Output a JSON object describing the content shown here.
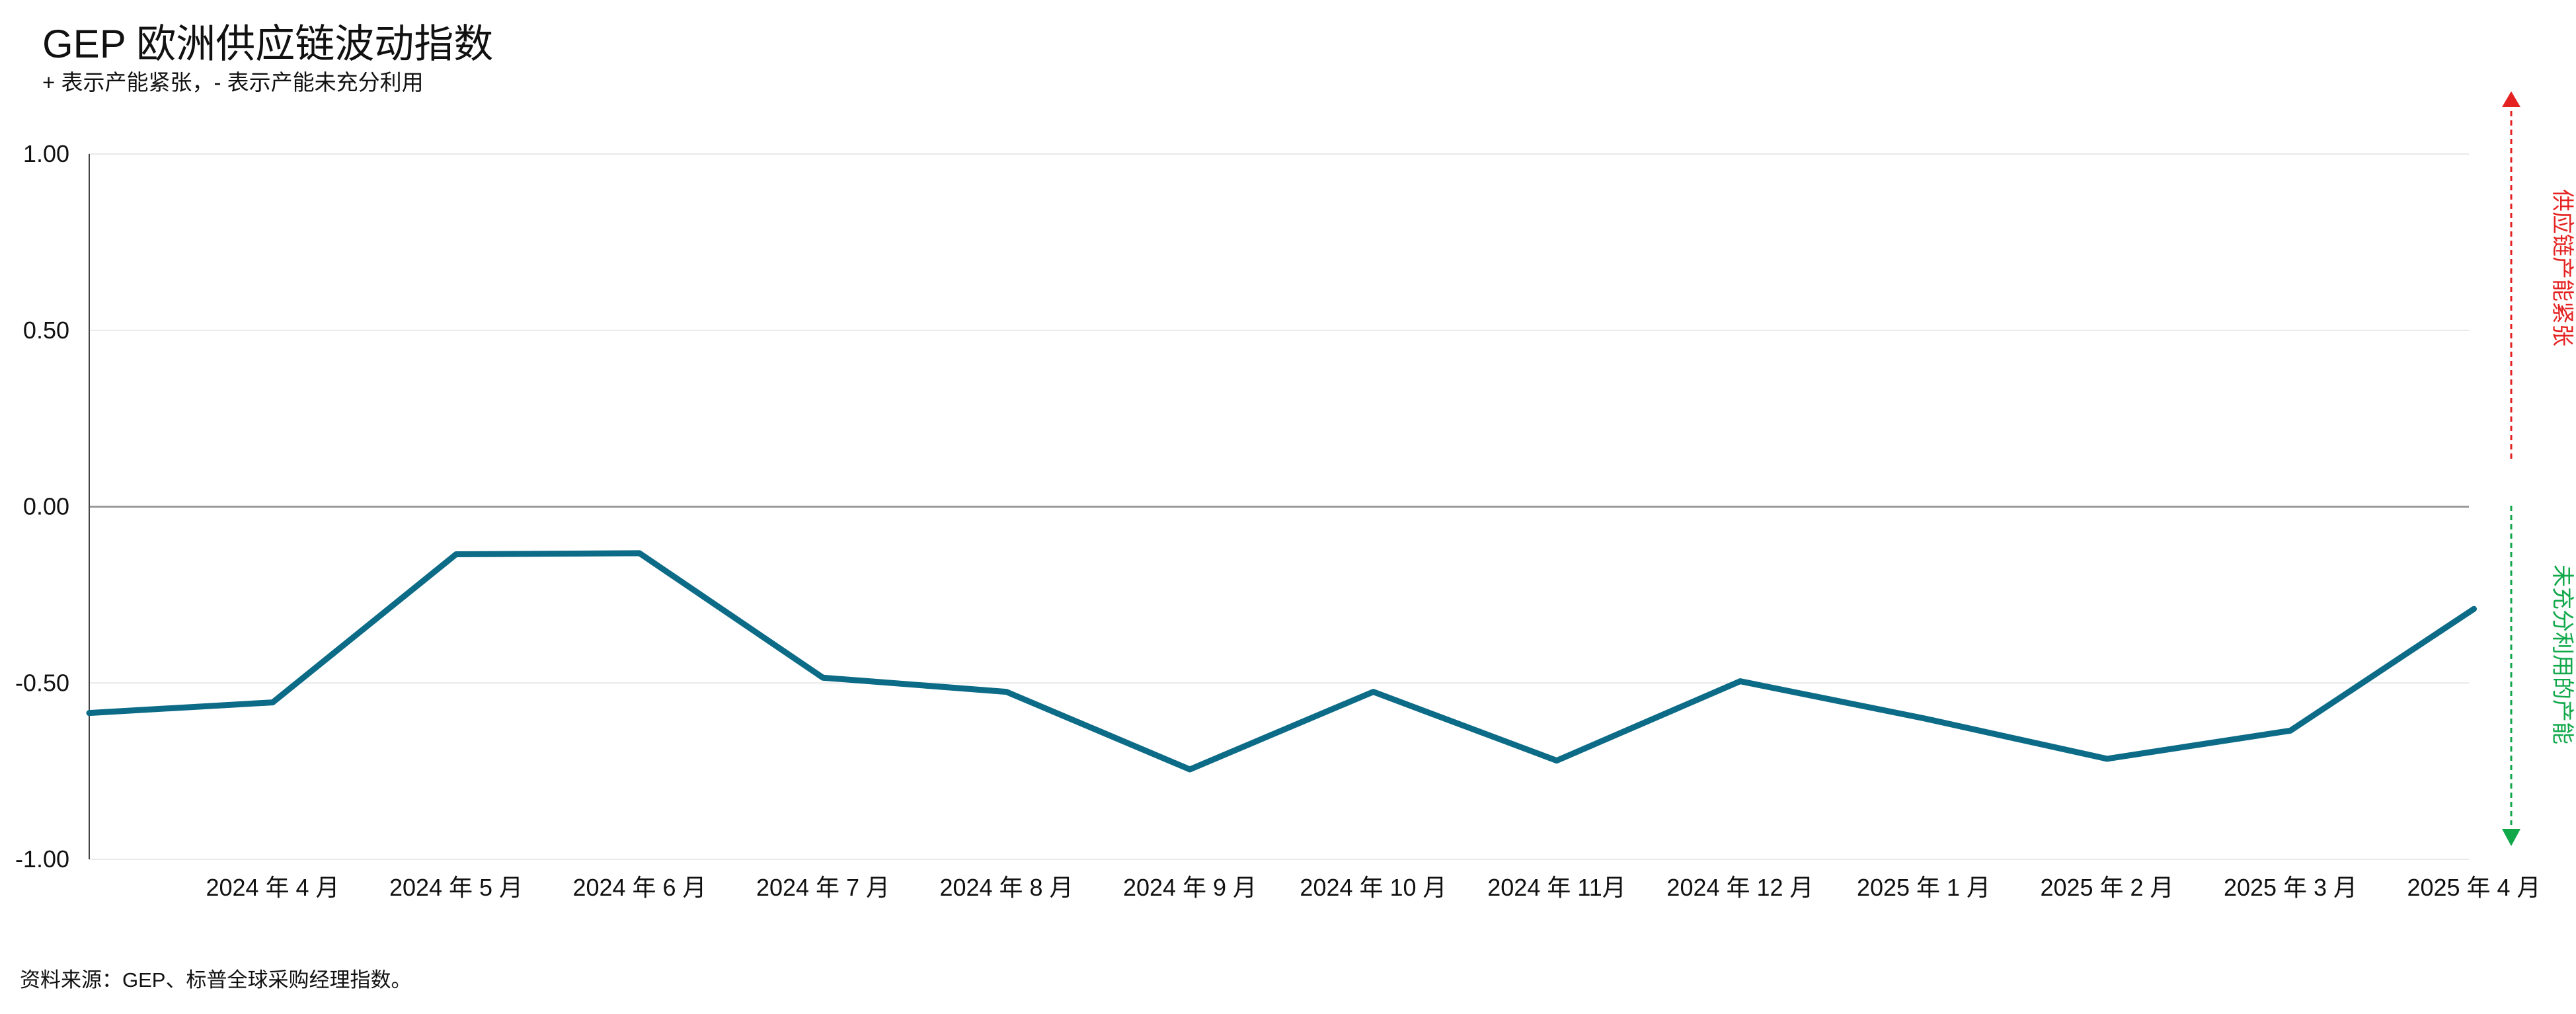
{
  "title": "GEP 欧洲供应链波动指数",
  "subtitle": "+ 表示产能紧张，- 表示产能未充分利用",
  "source": "资料来源：GEP、标普全球采购经理指数。",
  "colors": {
    "line": "#0c6b86",
    "up_indicator": "#e52222",
    "down_indicator": "#11a84a",
    "zero_line": "#9a9a9a",
    "grid": "#e9e9e9",
    "axis": "#444444"
  },
  "side_labels": {
    "up": "供应链产能紧张",
    "down": "未充分利用的产能"
  },
  "chart_data": {
    "type": "line",
    "title": "GEP 欧洲供应链波动指数",
    "subtitle": "+ 表示产能紧张，- 表示产能未充分利用",
    "categories": [
      "",
      "2024 年 4 月",
      "2024 年 5 月",
      "2024 年 6 月",
      "2024 年 7 月",
      "2024 年 8 月",
      "2024 年 9 月",
      "2024 年 10 月",
      "2024 年 11月",
      "2024 年 12 月",
      "2025 年 1 月",
      "2025 年 2 月",
      "2025 年 3 月",
      "2025 年 4 月"
    ],
    "series": [
      {
        "values": [
          -0.585,
          -0.555,
          -0.135,
          -0.132,
          -0.485,
          -0.525,
          -0.745,
          -0.525,
          -0.72,
          -0.495,
          -0.6,
          -0.715,
          -0.635,
          -0.29
        ]
      }
    ],
    "y_ticks": [
      "1.00",
      "0.50",
      "0.00",
      "-0.50",
      "-1.00"
    ],
    "y_tick_values": [
      1,
      0.5,
      0,
      -0.5,
      -1
    ],
    "ylim": [
      -1,
      1
    ],
    "grid": true
  }
}
